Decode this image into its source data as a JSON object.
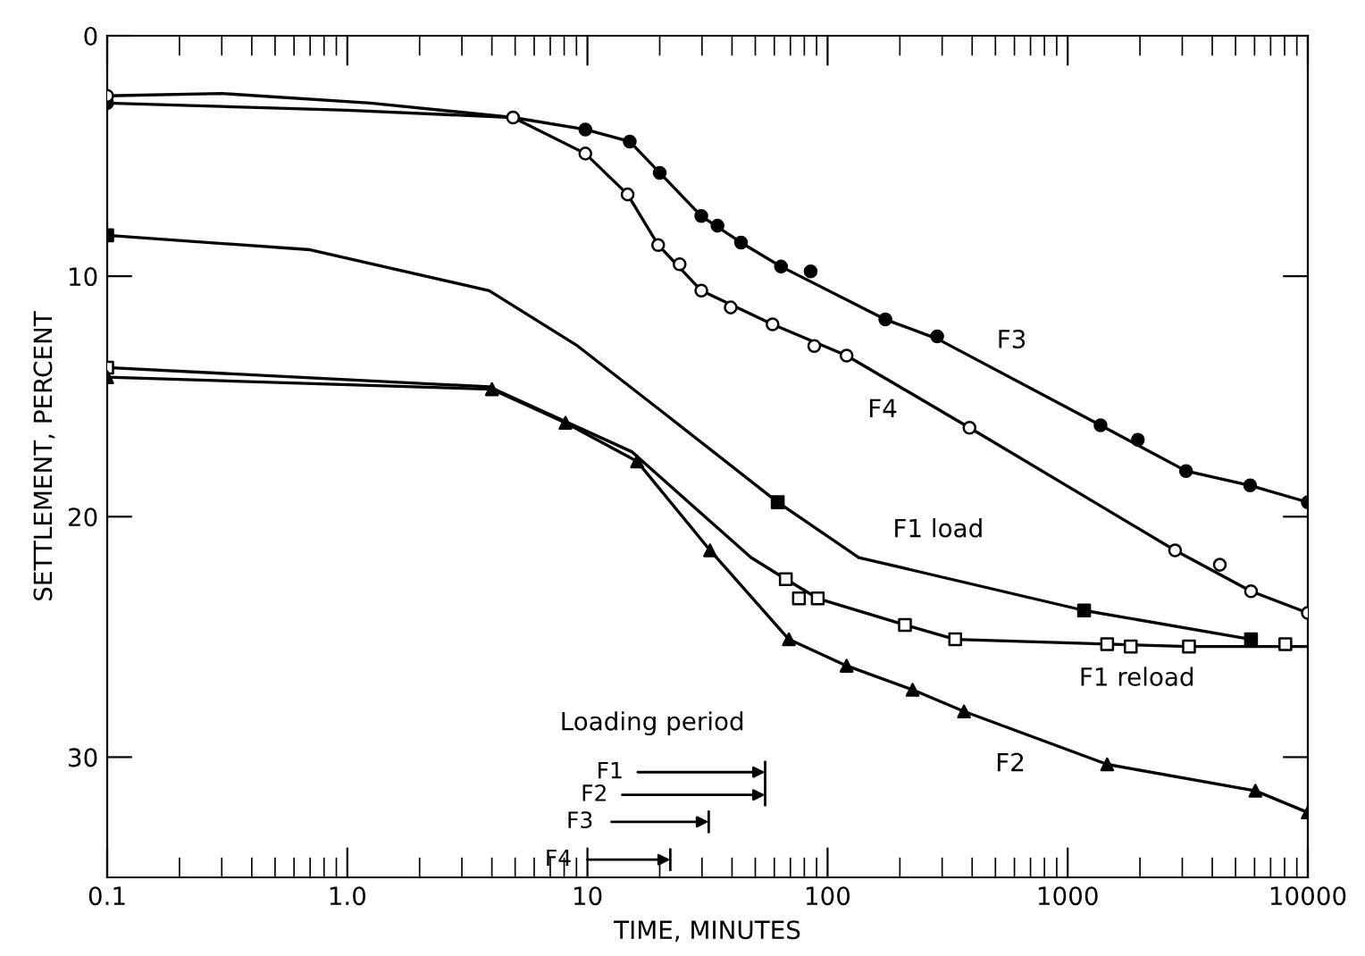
{
  "chart_data": {
    "type": "line",
    "xlabel": "TIME, MINUTES",
    "ylabel": "SETTLEMENT, PERCENT",
    "log": "x",
    "grid": false,
    "legend": false,
    "xlim": [
      0.1,
      10000
    ],
    "ylim": [
      35,
      0
    ],
    "xticks": [
      0.1,
      {
        "value": 1,
        "label": "1.0"
      },
      10,
      100,
      1000,
      10000
    ],
    "yticks": [
      0,
      10,
      20,
      30
    ],
    "series": [
      {
        "name": "F3",
        "color": "#000000",
        "marker": "none",
        "x": [
          0.1,
          1.0,
          4.9,
          9.8,
          15,
          20,
          29.8,
          43.6,
          64,
          174,
          286,
          1370,
          3110,
          5750,
          10000
        ],
        "values": [
          2.8,
          3.1,
          3.4,
          3.9,
          4.4,
          5.7,
          7.5,
          8.6,
          9.6,
          11.8,
          12.6,
          16.2,
          18.1,
          18.7,
          19.4
        ]
      },
      {
        "type": "scatter",
        "color": "#000000",
        "marker": "circle",
        "x": [
          0.1,
          9.8,
          15,
          20,
          29.8,
          34.8,
          43.6,
          64,
          85,
          174,
          286,
          1370,
          1960,
          3110,
          5750,
          10000
        ],
        "values": [
          2.8,
          3.9,
          4.4,
          5.7,
          7.5,
          7.9,
          8.6,
          9.6,
          9.8,
          11.8,
          12.5,
          16.2,
          16.8,
          18.1,
          18.7,
          19.4
        ]
      },
      {
        "name": "F4",
        "color": "#000000",
        "marker": "none",
        "x": [
          0.1,
          0.3,
          1.25,
          4.9,
          9.8,
          14.7,
          19.7,
          29.8,
          59,
          120,
          390,
          2800,
          5800,
          10000
        ],
        "values": [
          2.5,
          2.4,
          2.8,
          3.4,
          4.9,
          6.6,
          8.7,
          10.6,
          12.0,
          13.3,
          16.3,
          21.4,
          23.1,
          24.0
        ]
      },
      {
        "type": "scatter",
        "color": "#ffffff",
        "marker": "circle",
        "x": [
          0.1,
          4.9,
          9.8,
          14.7,
          19.7,
          24.2,
          29.8,
          39.5,
          59,
          88,
          120,
          390,
          2800,
          4300,
          5800,
          10000
        ],
        "values": [
          2.5,
          3.4,
          4.9,
          6.6,
          8.7,
          9.5,
          10.6,
          11.3,
          12.0,
          12.9,
          13.3,
          16.3,
          21.4,
          22.0,
          23.1,
          24.0
        ]
      },
      {
        "name": "F1 load",
        "color": "#000000",
        "marker": "none",
        "x": [
          0.1,
          0.7,
          3.9,
          9.1,
          21.5,
          62,
          135,
          1170,
          5800
        ],
        "values": [
          8.3,
          8.9,
          10.6,
          12.9,
          15.8,
          19.4,
          21.7,
          23.9,
          25.1
        ]
      },
      {
        "type": "scatter",
        "color": "#000000",
        "marker": "square",
        "x": [
          0.1,
          62,
          1170,
          5800
        ],
        "values": [
          8.3,
          19.4,
          23.9,
          25.1
        ]
      },
      {
        "name": "F1 reload",
        "color": "#000000",
        "marker": "none",
        "x": [
          0.1,
          3.9,
          15.3,
          48,
          67,
          91,
          210,
          340,
          1460,
          3200,
          10000
        ],
        "values": [
          13.8,
          14.6,
          17.3,
          21.7,
          22.6,
          23.4,
          24.5,
          25.1,
          25.3,
          25.4,
          25.4
        ]
      },
      {
        "type": "scatter",
        "color": "#ffffff",
        "marker": "square",
        "x": [
          0.1,
          67,
          76,
          91,
          210,
          340,
          1460,
          1830,
          3200,
          8060
        ],
        "values": [
          13.8,
          22.6,
          23.4,
          23.4,
          24.5,
          25.1,
          25.3,
          25.4,
          25.4,
          25.3
        ]
      },
      {
        "name": "F2",
        "color": "#000000",
        "marker": "none",
        "x": [
          0.1,
          4.0,
          8.1,
          16.1,
          32.4,
          69,
          120,
          226,
          370,
          1460,
          6050,
          10000
        ],
        "values": [
          14.2,
          14.7,
          16.1,
          17.7,
          21.4,
          25.1,
          26.2,
          27.2,
          28.1,
          30.3,
          31.4,
          32.3
        ]
      },
      {
        "type": "scatter",
        "color": "#000000",
        "marker": "triangle",
        "x": [
          0.1,
          4.0,
          8.1,
          16.1,
          32.4,
          69,
          120,
          226,
          370,
          1460,
          6050,
          10000
        ],
        "values": [
          14.2,
          14.7,
          16.1,
          17.7,
          21.4,
          25.1,
          26.2,
          27.2,
          28.1,
          30.3,
          31.4,
          32.3
        ]
      }
    ],
    "annotations": [
      "Loading period",
      "F1",
      "F2",
      "F3",
      "F4"
    ]
  }
}
